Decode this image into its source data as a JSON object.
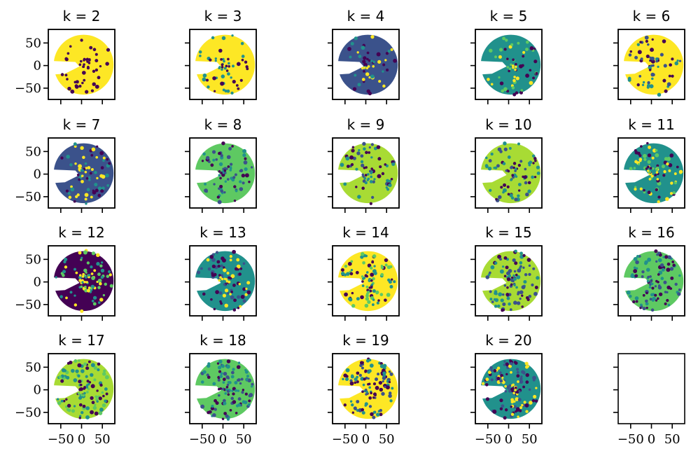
{
  "chart_data": {
    "type": "scatter",
    "layout": {
      "rows": 4,
      "cols": 5
    },
    "xlim": [
      -80,
      80
    ],
    "ylim": [
      -75,
      80
    ],
    "xticks": [
      -50,
      0,
      50
    ],
    "yticks": [
      -50,
      0,
      50
    ],
    "xtick_labels": [
      "−50",
      "0",
      "50"
    ],
    "ytick_labels": [
      "−50",
      "0",
      "50"
    ],
    "colormap": [
      "#440154",
      "#3b528b",
      "#21918c",
      "#5ec962",
      "#a8db34",
      "#fde725"
    ],
    "panels": [
      {
        "k": 2,
        "title": "k = 2",
        "background": "#fde725",
        "accents": [
          "#440154"
        ]
      },
      {
        "k": 3,
        "title": "k = 3",
        "background": "#fde725",
        "accents": [
          "#440154",
          "#21918c"
        ]
      },
      {
        "k": 4,
        "title": "k = 4",
        "background": "#3b528b",
        "accents": [
          "#fde725",
          "#21918c",
          "#440154"
        ]
      },
      {
        "k": 5,
        "title": "k = 5",
        "background": "#21918c",
        "accents": [
          "#fde725",
          "#440154",
          "#5ec962"
        ]
      },
      {
        "k": 6,
        "title": "k = 6",
        "background": "#fde725",
        "accents": [
          "#21918c",
          "#3b528b",
          "#440154"
        ]
      },
      {
        "k": 7,
        "title": "k = 7",
        "background": "#3b528b",
        "accents": [
          "#fde725",
          "#21918c",
          "#440154"
        ]
      },
      {
        "k": 8,
        "title": "k = 8",
        "background": "#5ec962",
        "accents": [
          "#3b528b",
          "#440154",
          "#21918c"
        ]
      },
      {
        "k": 9,
        "title": "k = 9",
        "background": "#a8db34",
        "accents": [
          "#440154",
          "#21918c",
          "#3b528b"
        ]
      },
      {
        "k": 10,
        "title": "k = 10",
        "background": "#a8db34",
        "accents": [
          "#440154",
          "#3b528b",
          "#21918c"
        ]
      },
      {
        "k": 11,
        "title": "k = 11",
        "background": "#21918c",
        "accents": [
          "#440154",
          "#fde725",
          "#5ec962"
        ]
      },
      {
        "k": 12,
        "title": "k = 12",
        "background": "#440154",
        "accents": [
          "#fde725",
          "#21918c",
          "#5ec962"
        ]
      },
      {
        "k": 13,
        "title": "k = 13",
        "background": "#21918c",
        "accents": [
          "#3b528b",
          "#fde725",
          "#440154"
        ]
      },
      {
        "k": 14,
        "title": "k = 14",
        "background": "#fde725",
        "accents": [
          "#440154",
          "#21918c",
          "#5ec962"
        ]
      },
      {
        "k": 15,
        "title": "k = 15",
        "background": "#a8db34",
        "accents": [
          "#440154",
          "#3b528b",
          "#21918c"
        ]
      },
      {
        "k": 16,
        "title": "k = 16",
        "background": "#5ec962",
        "accents": [
          "#3b528b",
          "#440154",
          "#21918c"
        ]
      },
      {
        "k": 17,
        "title": "k = 17",
        "background": "#a8db34",
        "accents": [
          "#440154",
          "#21918c",
          "#5ec962"
        ]
      },
      {
        "k": 18,
        "title": "k = 18",
        "background": "#5ec962",
        "accents": [
          "#440154",
          "#3b528b",
          "#21918c"
        ]
      },
      {
        "k": 19,
        "title": "k = 19",
        "background": "#fde725",
        "accents": [
          "#440154",
          "#21918c",
          "#3b528b"
        ]
      },
      {
        "k": 20,
        "title": "k = 20",
        "background": "#21918c",
        "accents": [
          "#440154",
          "#fde725",
          "#3b528b"
        ]
      }
    ],
    "empty_panels": 1
  }
}
